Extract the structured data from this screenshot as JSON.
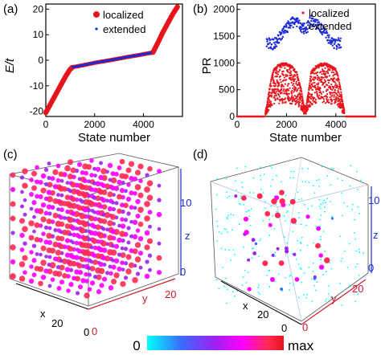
{
  "panel_labels": [
    "(a)",
    "(b)",
    "(c)",
    "(d)"
  ],
  "colors": {
    "localized": "#e8141c",
    "extended": "#1d2bd6",
    "axis": "#000000",
    "cube_edge_a": "#555555",
    "cube_edge_b": "#b0c4de",
    "axis_x": "#000000",
    "axis_y": "#d11a2a",
    "axis_z": "#1a2bd6",
    "colorbar_stops": [
      "#00ffff",
      "#3a6bff",
      "#a020f0",
      "#ff00ff",
      "#ff2a55",
      "#e8141c"
    ]
  },
  "chart_data": [
    {
      "panel": "(a)",
      "type": "scatter",
      "xlabel": "State number",
      "ylabel": "E/t",
      "xlim": [
        0,
        5600
      ],
      "ylim": [
        -22,
        22
      ],
      "xticks": [
        0,
        2000,
        4000
      ],
      "yticks": [
        -20,
        -10,
        0,
        10,
        20
      ],
      "legend_position": "top-right",
      "series": [
        {
          "name": "localized",
          "marker": "large-dot",
          "color": "#e8141c",
          "x": [
            0,
            200,
            400,
            600,
            800,
            1000,
            1100,
            4400,
            4600,
            4800,
            5000,
            5200,
            5400
          ],
          "y": [
            -20.5,
            -17,
            -13.5,
            -10,
            -6.5,
            -3.5,
            -2.7,
            3.2,
            7,
            11,
            14.5,
            18,
            21
          ]
        },
        {
          "name": "extended",
          "marker": "small-dot",
          "color": "#1d2bd6",
          "x": [
            1100,
            1500,
            2000,
            2500,
            2800,
            3300,
            3800,
            4300
          ],
          "y": [
            -2.7,
            -2,
            -1,
            -0.2,
            0.3,
            1.2,
            2.0,
            2.9
          ]
        }
      ]
    },
    {
      "panel": "(b)",
      "type": "scatter",
      "xlabel": "State number",
      "ylabel": "PR",
      "xlim": [
        0,
        5600
      ],
      "ylim": [
        0,
        2100
      ],
      "xticks": [
        0,
        2000,
        4000
      ],
      "yticks": [
        0,
        500,
        1000,
        1500,
        2000
      ],
      "legend_position": "top-right",
      "series": [
        {
          "name": "localized",
          "color": "#e8141c",
          "shape": "double-arch",
          "x": [
            0,
            1100,
            1200,
            1300,
            1400,
            1500,
            1600,
            1800,
            2000,
            2200,
            2400,
            2600,
            2700,
            2800,
            2900,
            3000,
            3200,
            3400,
            3600,
            3800,
            4000,
            4100,
            4200,
            4300,
            4400,
            5600
          ],
          "y": [
            0,
            0,
            200,
            500,
            750,
            900,
            950,
            1000,
            1000,
            950,
            850,
            500,
            200,
            200,
            500,
            850,
            950,
            1000,
            1000,
            950,
            900,
            750,
            500,
            200,
            0,
            0
          ]
        },
        {
          "name": "extended",
          "color": "#1d2bd6",
          "shape": "upper-band",
          "x": [
            1200,
            1400,
            1600,
            1800,
            2000,
            2200,
            2400,
            2600,
            2800,
            3000,
            3200,
            3400,
            3600,
            3800,
            4000,
            4200
          ],
          "y": [
            1350,
            1300,
            1350,
            1500,
            1600,
            1700,
            1750,
            1600,
            1600,
            1750,
            1700,
            1600,
            1500,
            1350,
            1300,
            1350
          ]
        }
      ]
    }
  ],
  "cube_c": {
    "panel": "(c)",
    "axis_labels": {
      "x": "x",
      "y": "y",
      "z": "z"
    },
    "x_ticks": [
      "20",
      "0"
    ],
    "y_ticks": [
      "0",
      "20"
    ],
    "z_ticks": [
      "10",
      "0"
    ]
  },
  "cube_d": {
    "panel": "(d)",
    "axis_labels": {
      "x": "x",
      "y": "y",
      "z": "z"
    },
    "x_ticks": [
      "20",
      "0"
    ],
    "y_ticks": [
      "0",
      "20"
    ],
    "z_ticks": [
      "10",
      "0"
    ]
  },
  "colorbar": {
    "min_label": "0",
    "max_label": "max"
  }
}
